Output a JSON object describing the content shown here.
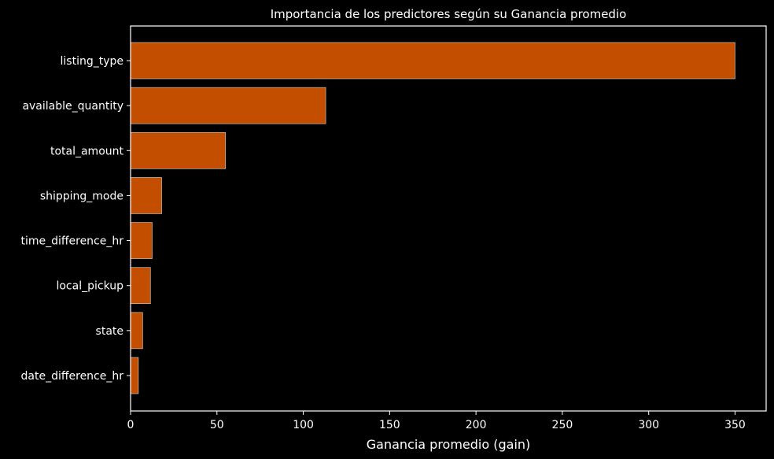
{
  "chart_data": {
    "type": "bar",
    "orientation": "horizontal",
    "title": "Importancia de los predictores según su Ganancia promedio",
    "xlabel": "Ganancia promedio (gain)",
    "ylabel": "",
    "categories": [
      "listing_type",
      "available_quantity",
      "total_amount",
      "shipping_mode",
      "time_difference_hr",
      "local_pickup",
      "state",
      "date_difference_hr"
    ],
    "values": [
      350,
      113,
      55,
      18,
      12.5,
      11.5,
      7,
      4.5
    ],
    "xlim": [
      0,
      368
    ],
    "xticks": [
      "0",
      "50",
      "100",
      "150",
      "200",
      "250",
      "300",
      "350"
    ],
    "grid": false,
    "legend": "none",
    "colors": {
      "background": "#000000",
      "bar": "#c44e00",
      "bar_edge": "#d9d9d9",
      "text": "#ffffff"
    }
  }
}
